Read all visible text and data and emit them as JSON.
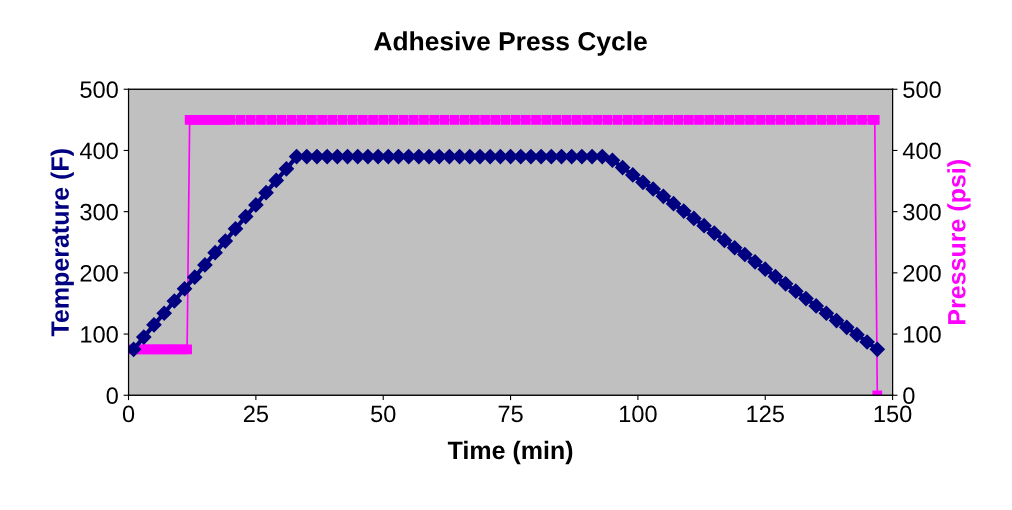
{
  "chart_data": {
    "type": "line",
    "title": "Adhesive Press Cycle",
    "xlabel": "Time (min)",
    "ylabel": "Temperature (F)",
    "y2label": "Pressure (psi)",
    "xlim": [
      0,
      150
    ],
    "xticks": [
      0,
      25,
      50,
      75,
      100,
      125,
      150
    ],
    "ylim": [
      0,
      500
    ],
    "yticks": [
      0,
      100,
      200,
      300,
      400,
      500
    ],
    "y2lim": [
      0,
      500
    ],
    "y2ticks": [
      0,
      100,
      200,
      300,
      400,
      500
    ],
    "grid": false,
    "legend": false,
    "series": [
      {
        "color": "#000080",
        "marker": "diamond",
        "axis": "y",
        "x": [
          1,
          3,
          5,
          7,
          9,
          11,
          13,
          15,
          17,
          19,
          21,
          23,
          25,
          27,
          29,
          31,
          33,
          35,
          37,
          39,
          41,
          43,
          45,
          47,
          49,
          51,
          53,
          55,
          57,
          59,
          61,
          63,
          65,
          67,
          69,
          71,
          73,
          75,
          77,
          79,
          81,
          83,
          85,
          87,
          89,
          91,
          93,
          95,
          97,
          99,
          101,
          103,
          105,
          107,
          109,
          111,
          113,
          115,
          117,
          119,
          121,
          123,
          125,
          127,
          129,
          131,
          133,
          135,
          137,
          139,
          141,
          143,
          145,
          147
        ],
        "values": [
          75,
          95,
          115,
          134,
          154,
          174,
          193,
          213,
          233,
          252,
          272,
          292,
          311,
          331,
          351,
          370,
          390,
          390,
          390,
          390,
          390,
          390,
          390,
          390,
          390,
          390,
          390,
          390,
          390,
          390,
          390,
          390,
          390,
          390,
          390,
          390,
          390,
          390,
          390,
          390,
          390,
          390,
          390,
          390,
          390,
          390,
          390,
          384,
          372,
          360,
          348,
          337,
          325,
          313,
          301,
          289,
          277,
          265,
          253,
          241,
          230,
          218,
          206,
          194,
          182,
          170,
          158,
          146,
          134,
          122,
          111,
          99,
          87,
          75
        ]
      },
      {
        "color": "#ff00ff",
        "marker": "square",
        "axis": "y2",
        "x": [
          0.5,
          1.5,
          2.5,
          3.5,
          4.5,
          5.5,
          6.5,
          7.5,
          8.5,
          9.5,
          10.5,
          11.5,
          12,
          13,
          14,
          15,
          16,
          17,
          18,
          19,
          20,
          22,
          24,
          26,
          28,
          30,
          32,
          34,
          36,
          38,
          40,
          42,
          44,
          46,
          48,
          50,
          52,
          54,
          56,
          58,
          60,
          62,
          64,
          66,
          68,
          70,
          72,
          74,
          76,
          78,
          80,
          82,
          84,
          86,
          88,
          90,
          92,
          94,
          96,
          98,
          100,
          102,
          104,
          106,
          108,
          110,
          112,
          114,
          116,
          118,
          120,
          122,
          124,
          126,
          128,
          130,
          132,
          134,
          136,
          138,
          140,
          142,
          144,
          146,
          146.5,
          147
        ],
        "values": [
          75,
          75,
          75,
          75,
          75,
          75,
          75,
          75,
          75,
          75,
          75,
          75,
          450,
          450,
          450,
          450,
          450,
          450,
          450,
          450,
          450,
          450,
          450,
          450,
          450,
          450,
          450,
          450,
          450,
          450,
          450,
          450,
          450,
          450,
          450,
          450,
          450,
          450,
          450,
          450,
          450,
          450,
          450,
          450,
          450,
          450,
          450,
          450,
          450,
          450,
          450,
          450,
          450,
          450,
          450,
          450,
          450,
          450,
          450,
          450,
          450,
          450,
          450,
          450,
          450,
          450,
          450,
          450,
          450,
          450,
          450,
          450,
          450,
          450,
          450,
          450,
          450,
          450,
          450,
          450,
          450,
          450,
          450,
          450,
          450,
          0
        ]
      }
    ]
  }
}
